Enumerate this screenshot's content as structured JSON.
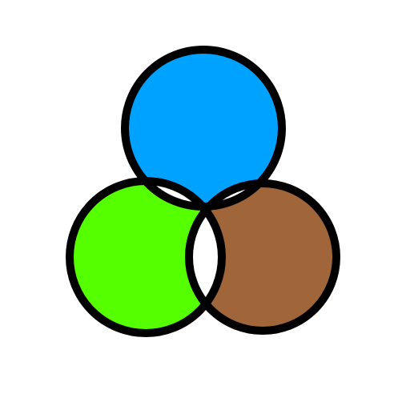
{
  "diagram": {
    "type": "three-circle-venn",
    "background": "#ffffff",
    "outline_color": "#000000",
    "overlap_fill": "#ffffff",
    "circles": [
      {
        "id": "top",
        "fill": "#00a2ff"
      },
      {
        "id": "bottom-left",
        "fill": "#55ff00"
      },
      {
        "id": "bottom-right",
        "fill": "#a0663a"
      }
    ]
  }
}
